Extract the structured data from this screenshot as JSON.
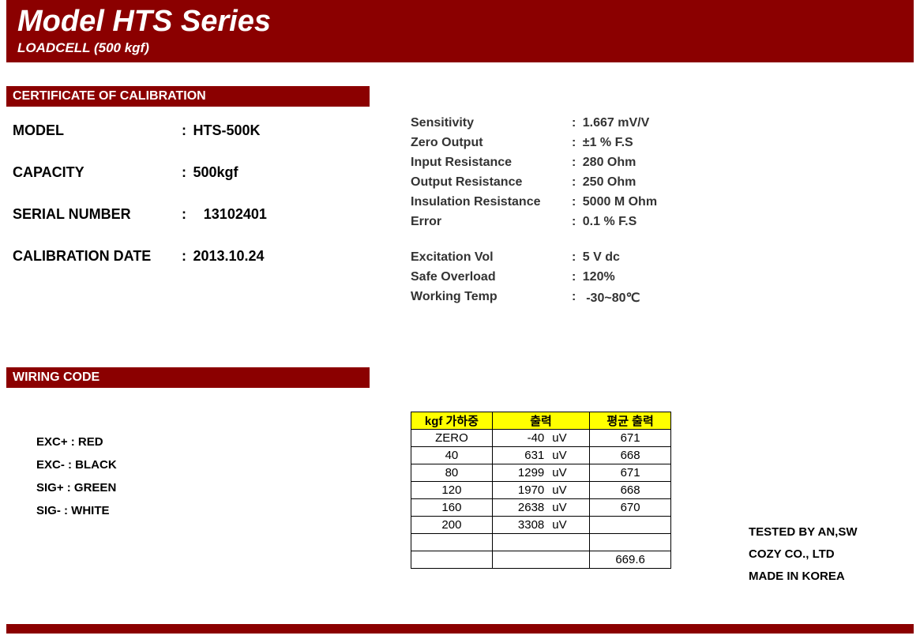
{
  "colors": {
    "brand": "#8b0000",
    "highlight": "#ffff00",
    "text": "#000000"
  },
  "header": {
    "title": "Model HTS Series",
    "subtitle": "LOADCELL (500 kgf)"
  },
  "sections": {
    "cert": "CERTIFICATE OF CALIBRATION",
    "wiring": "WIRING CODE"
  },
  "left": {
    "model_k": "MODEL",
    "model_v": "HTS-500K",
    "cap_k": "CAPACITY",
    "cap_v": "500kgf",
    "sn_k": "SERIAL NUMBER",
    "sn_v": "13102401",
    "date_k": "CALIBRATION DATE",
    "date_v": "2013.10.24"
  },
  "right": {
    "sens_k": "Sensitivity",
    "sens_v": "1.667 mV/V",
    "zero_k": "Zero Output",
    "zero_v": "±1 % F.S",
    "inres_k": "Input Resistance",
    "inres_v": "280 Ohm",
    "outres_k": "Output Resistance",
    "outres_v": "250 Ohm",
    "insres_k": "Insulation Resistance",
    "insres_v": "5000 M Ohm",
    "err_k": "Error",
    "err_v": "0.1 % F.S",
    "exv_k": "Excitation Vol",
    "exv_v": "5 V dc",
    "safe_k": "Safe Overload",
    "safe_v": "120%",
    "temp_k": "Working Temp",
    "temp_v": "-30~80℃"
  },
  "wiring": {
    "w1": "EXC+ : RED",
    "w2": "EXC-  : BLACK",
    "w3": "SIG+ : GREEN",
    "w4": "SIG-  : WHITE"
  },
  "table": {
    "headers": {
      "load": "kgf 가하중",
      "out": "출력",
      "avg": "평균 출력"
    },
    "unit": "uV",
    "rows": [
      {
        "load": "ZERO",
        "out": "-40",
        "avg": "671"
      },
      {
        "load": "40",
        "out": "631",
        "avg": "668"
      },
      {
        "load": "80",
        "out": "1299",
        "avg": "671"
      },
      {
        "load": "120",
        "out": "1970",
        "avg": "668"
      },
      {
        "load": "160",
        "out": "2638",
        "avg": "670"
      },
      {
        "load": "200",
        "out": "3308",
        "avg": ""
      }
    ],
    "final_avg": "669.6"
  },
  "footer": {
    "l1": "TESTED BY AN,SW",
    "l2": "COZY CO., LTD",
    "l3": "MADE IN KOREA"
  }
}
